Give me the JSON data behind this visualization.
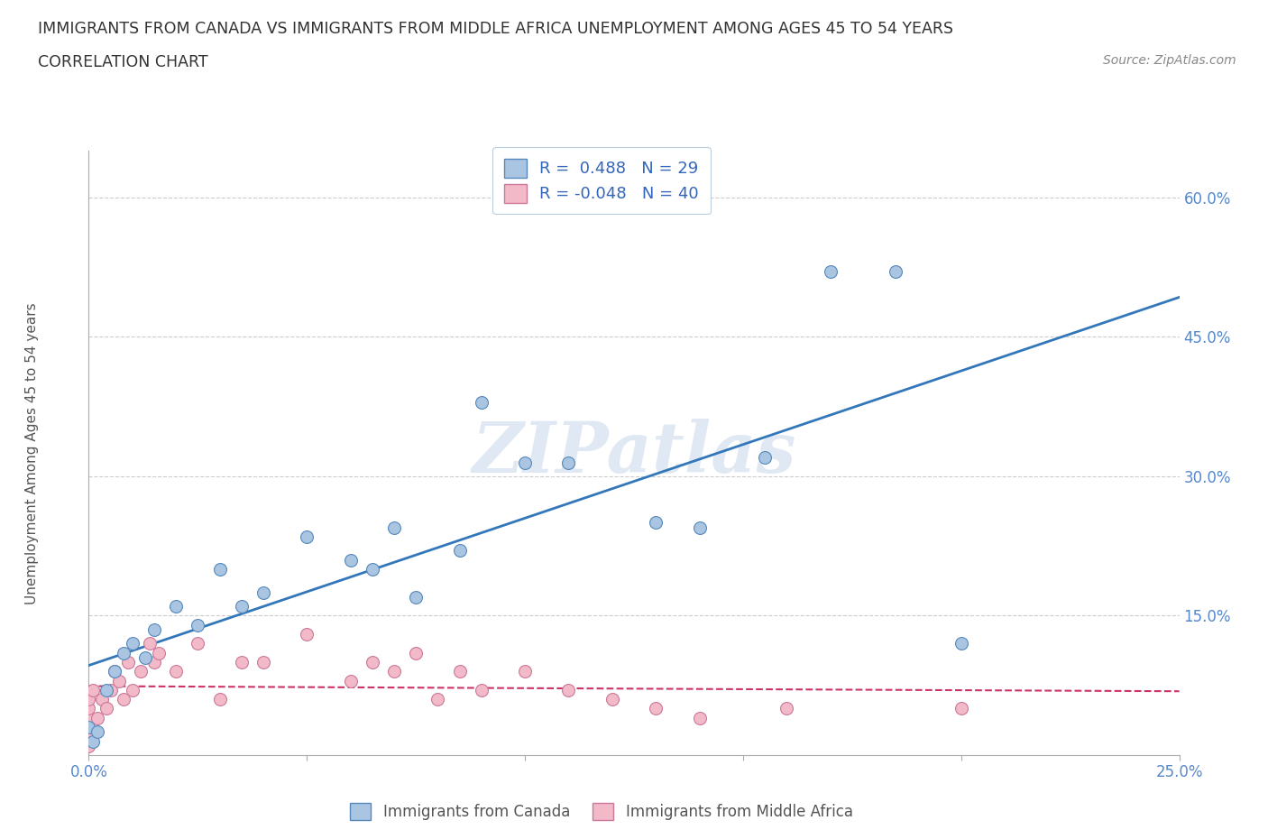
{
  "title_line1": "IMMIGRANTS FROM CANADA VS IMMIGRANTS FROM MIDDLE AFRICA UNEMPLOYMENT AMONG AGES 45 TO 54 YEARS",
  "title_line2": "CORRELATION CHART",
  "source": "Source: ZipAtlas.com",
  "ylabel": "Unemployment Among Ages 45 to 54 years",
  "xlim": [
    0.0,
    0.25
  ],
  "ylim": [
    0.0,
    0.65
  ],
  "yticks": [
    0.15,
    0.3,
    0.45,
    0.6
  ],
  "yticklabels": [
    "15.0%",
    "30.0%",
    "45.0%",
    "60.0%"
  ],
  "xtick_left": "0.0%",
  "xtick_right": "25.0%",
  "watermark": "ZIPatlas",
  "legend_r1": "R =  0.488   N = 29",
  "legend_r2": "R = -0.048   N = 40",
  "canada_color": "#aac5e2",
  "canada_edge": "#5588bb",
  "middle_africa_color": "#f2bac8",
  "middle_africa_edge": "#cc7799",
  "regression_canada_color": "#3377bb",
  "regression_ma_color": "#cc3366",
  "canada_scatter_x": [
    0.0,
    0.001,
    0.002,
    0.004,
    0.006,
    0.008,
    0.01,
    0.013,
    0.015,
    0.02,
    0.025,
    0.03,
    0.035,
    0.04,
    0.05,
    0.06,
    0.065,
    0.07,
    0.075,
    0.085,
    0.09,
    0.1,
    0.11,
    0.13,
    0.14,
    0.155,
    0.17,
    0.185,
    0.2
  ],
  "canada_scatter_y": [
    0.03,
    0.015,
    0.025,
    0.07,
    0.09,
    0.11,
    0.12,
    0.105,
    0.135,
    0.16,
    0.14,
    0.2,
    0.16,
    0.175,
    0.235,
    0.21,
    0.2,
    0.245,
    0.17,
    0.22,
    0.38,
    0.315,
    0.315,
    0.25,
    0.245,
    0.32,
    0.52,
    0.52,
    0.12
  ],
  "ma_scatter_x": [
    0.0,
    0.0,
    0.0,
    0.0,
    0.0,
    0.0,
    0.001,
    0.002,
    0.003,
    0.004,
    0.005,
    0.006,
    0.007,
    0.008,
    0.009,
    0.01,
    0.012,
    0.014,
    0.015,
    0.016,
    0.02,
    0.025,
    0.03,
    0.035,
    0.04,
    0.05,
    0.06,
    0.065,
    0.07,
    0.075,
    0.08,
    0.085,
    0.09,
    0.1,
    0.11,
    0.12,
    0.13,
    0.14,
    0.16,
    0.2
  ],
  "ma_scatter_y": [
    0.01,
    0.02,
    0.03,
    0.04,
    0.05,
    0.06,
    0.07,
    0.04,
    0.06,
    0.05,
    0.07,
    0.09,
    0.08,
    0.06,
    0.1,
    0.07,
    0.09,
    0.12,
    0.1,
    0.11,
    0.09,
    0.12,
    0.06,
    0.1,
    0.1,
    0.13,
    0.08,
    0.1,
    0.09,
    0.11,
    0.06,
    0.09,
    0.07,
    0.09,
    0.07,
    0.06,
    0.05,
    0.04,
    0.05,
    0.05
  ],
  "grid_color": "#cccccc",
  "background_color": "#ffffff"
}
